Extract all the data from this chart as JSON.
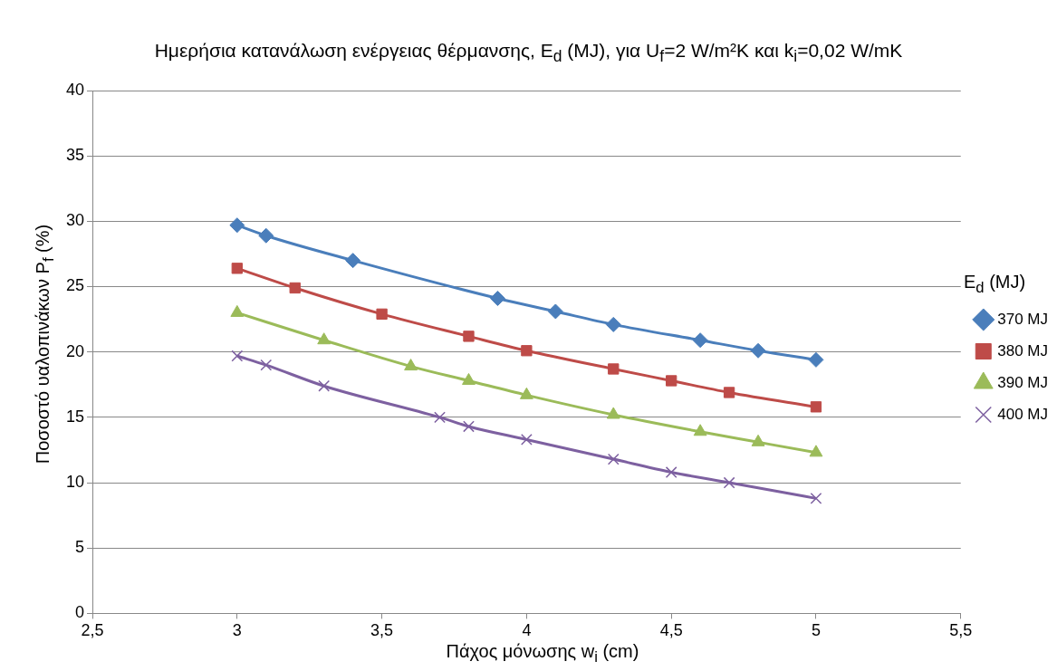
{
  "chart_data": {
    "type": "line",
    "title": "Ημερήσια κατανάλωση ενέργειας θέρμανσης, E$_{d}$ (MJ), για U$_{f}$=2 W/m²K  και k$_{i}$=0,02 W/mK",
    "xlabel": "Πάχος μόνωσης w$_{i}$ (cm)",
    "ylabel": "Ποσοστό υαλοπινάκων P$_{f}$ (%)",
    "legend_title": "E$_{d}$  (MJ)",
    "legend": "right",
    "grid": "y",
    "line_style": "solid",
    "xlim": [
      2.5,
      5.5
    ],
    "xticks": [
      {
        "value": 2.5,
        "label": "2,5"
      },
      3,
      {
        "value": 3.5,
        "label": "3,5"
      },
      4,
      {
        "value": 4.5,
        "label": "4,5"
      },
      5,
      {
        "value": 5.5,
        "label": "5,5"
      }
    ],
    "ylim": [
      0,
      40
    ],
    "yticks": [
      0,
      5,
      10,
      15,
      20,
      25,
      30,
      35,
      40
    ],
    "series": [
      {
        "name": "370 MJ",
        "color": "#4a7ebb",
        "marker": "diamond",
        "x": [
          3,
          3.1,
          3.4,
          3.9,
          4.1,
          4.3,
          4.6,
          4.8,
          5
        ],
        "values": [
          29.7,
          28.9,
          27.0,
          24.1,
          23.1,
          22.1,
          20.9,
          20.1,
          19.4
        ]
      },
      {
        "name": "380 MJ",
        "color": "#be4b48",
        "marker": "square",
        "x": [
          3,
          3.2,
          3.5,
          3.8,
          4,
          4.3,
          4.5,
          4.7,
          5
        ],
        "values": [
          26.4,
          24.9,
          22.9,
          21.2,
          20.1,
          18.7,
          17.8,
          16.9,
          15.8
        ]
      },
      {
        "name": "390 MJ",
        "color": "#9bbb59",
        "marker": "triangle",
        "x": [
          3,
          3.3,
          3.6,
          3.8,
          4,
          4.3,
          4.6,
          4.8,
          5
        ],
        "values": [
          23.0,
          20.9,
          18.9,
          17.8,
          16.7,
          15.2,
          13.9,
          13.1,
          12.3
        ]
      },
      {
        "name": "400 MJ",
        "color": "#7d60a0",
        "marker": "cross",
        "x": [
          3,
          3.1,
          3.3,
          3.7,
          3.8,
          4,
          4.3,
          4.5,
          4.7,
          5
        ],
        "values": [
          19.7,
          19.0,
          17.4,
          15.0,
          14.3,
          13.3,
          11.8,
          10.8,
          10.0,
          8.8
        ]
      }
    ]
  }
}
